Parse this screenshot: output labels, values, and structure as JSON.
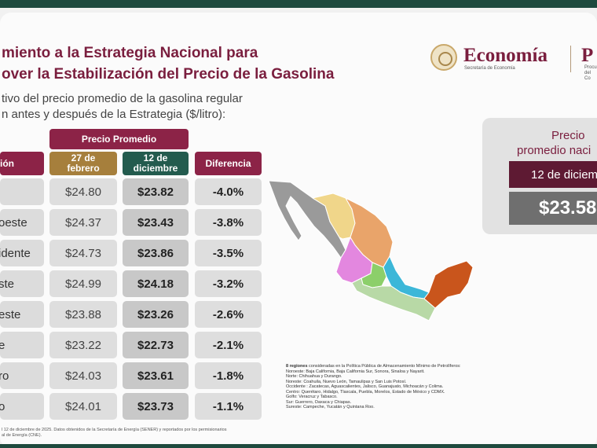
{
  "header": {
    "title_line1": "miento a la Estrategia Nacional para",
    "title_line2": "over la Estabilización del Precio de la Gasolina",
    "subtitle_line1": "tivo del precio promedio de la gasolina regular",
    "subtitle_line2": "n antes y después de la Estrategia ($/litro):"
  },
  "logo": {
    "name": "Economía",
    "sub": "Secretaría de Economía",
    "second_initial": "P",
    "second_sub_line1": "Procu",
    "second_sub_line2": "del Co"
  },
  "table": {
    "group_header": "Precio Promedio",
    "col_region": "ión",
    "col_feb": "27 de febrero",
    "col_dic": "12 de diciembre",
    "col_diff": "Diferencia",
    "rows": [
      {
        "region": "",
        "feb": "$24.80",
        "dic": "$23.82",
        "diff": "-4.0%"
      },
      {
        "region": "oeste",
        "feb": "$24.37",
        "dic": "$23.43",
        "diff": "-3.8%"
      },
      {
        "region": "idente",
        "feb": "$24.73",
        "dic": "$23.86",
        "diff": "-3.5%"
      },
      {
        "region": "ste",
        "feb": "$24.99",
        "dic": "$24.18",
        "diff": "-3.2%"
      },
      {
        "region": "este",
        "feb": "$23.88",
        "dic": "$23.26",
        "diff": "-2.6%"
      },
      {
        "region": "e",
        "feb": "$23.22",
        "dic": "$22.73",
        "diff": "-2.1%"
      },
      {
        "region": "ro",
        "feb": "$24.03",
        "dic": "$23.61",
        "diff": "-1.8%"
      },
      {
        "region": "o",
        "feb": "$24.01",
        "dic": "$23.73",
        "diff": "-1.1%"
      }
    ]
  },
  "price_box": {
    "title_line1": "Precio",
    "title_line2": "promedio naci",
    "date": "12 de diciemb",
    "value": "$23.58"
  },
  "notes": {
    "heading": "8 regiones",
    "heading_rest": " consideradas en la Política Pública de Almacenamiento Mínimo de Petrolíferos:",
    "lines": [
      "Noroeste: Baja California, Baja California Sur, Sonora, Sinaloa y Nayarit.",
      "Norte: Chihuahua y Durango.",
      "Noreste: Coahuila, Nuevo León, Tamaulipas y San Luis Potosí.",
      "Occidente : Zacatecas, Aguascalientes, Jalisco, Guanajuato, Michoacán y Colima.",
      "Centro: Querétaro, Hidalgo, Tlaxcala, Puebla, Morelos, Estado de México y CDMX.",
      "Golfo: Veracruz y Tabasco.",
      "Sur: Guerrero, Oaxaca y Chiapas.",
      "Sureste: Campeche, Yucatán y Quintana Roo."
    ]
  },
  "footnote": {
    "line1": "l 12 de diciembre de 2025. Datos obtenidos de la Secretaría de Energía (SENER) y reportados por los permisionarios",
    "line2": "al de Energía (CNE)."
  },
  "colors": {
    "brand_wine": "#7a1e3e",
    "header_wine": "#8c2347",
    "feb_gold": "#a67f3c",
    "dic_green": "#235b4e",
    "dark_green_bar": "#1e4a3e"
  }
}
